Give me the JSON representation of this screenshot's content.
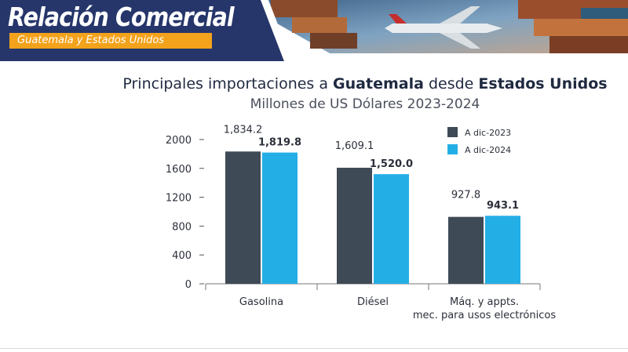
{
  "banner": {
    "title": "Relación Comercial",
    "subtitle": "Guatemala y Estados Unidos"
  },
  "colors": {
    "navy": "#26366a",
    "orange": "#f3a21b",
    "series_2023": "#3e4a55",
    "series_2024": "#24aee6"
  },
  "chart_data": {
    "type": "bar",
    "title_parts": [
      {
        "text": "Principales importaciones a ",
        "bold": false
      },
      {
        "text": "Guatemala",
        "bold": true
      },
      {
        "text": " desde ",
        "bold": false
      },
      {
        "text": "Estados Unidos",
        "bold": true
      }
    ],
    "subtitle": "Millones de US Dólares 2023-2024",
    "categories": [
      "Gasolina",
      "Diésel",
      "Máq. y appts.\nmec. para usos electrónicos"
    ],
    "series": [
      {
        "name": "A dic-2023",
        "values": [
          1834.2,
          1609.1,
          927.8
        ],
        "labels": [
          "1,834.2",
          "1,609.1",
          "927.8"
        ],
        "color": "#3e4a55",
        "label_bold": false
      },
      {
        "name": "A dic-2024",
        "values": [
          1819.8,
          1520.0,
          943.1
        ],
        "labels": [
          "1,819.8",
          "1,520.0",
          "943.1"
        ],
        "color": "#24aee6",
        "label_bold": true
      }
    ],
    "yticks": [
      0,
      400,
      800,
      1200,
      1600,
      2000
    ],
    "ylim": [
      0,
      2000
    ],
    "legend_position": "top-right",
    "grid": false
  }
}
